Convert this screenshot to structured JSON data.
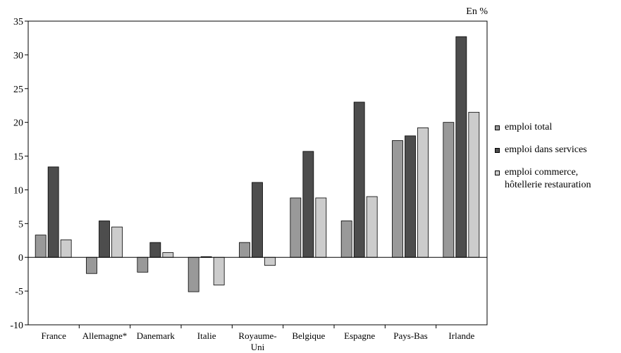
{
  "chart_data": {
    "type": "bar",
    "unit_label": "En %",
    "categories": [
      "France",
      "Allemagne*",
      "Danemark",
      "Italie",
      "Royaume-\nUni",
      "Belgique",
      "Espagne",
      "Pays-Bas",
      "Irlande"
    ],
    "series": [
      {
        "name": "emploi total",
        "color": "#999999",
        "values": [
          3.3,
          -2.4,
          -2.2,
          -5.1,
          2.2,
          8.8,
          5.4,
          17.3,
          20.0
        ]
      },
      {
        "name": "emploi dans services",
        "color": "#4d4d4d",
        "values": [
          13.4,
          5.4,
          2.2,
          0.1,
          11.1,
          15.7,
          23.0,
          18.0,
          32.7
        ]
      },
      {
        "name": "emploi commerce,\nhôtellerie restauration",
        "color": "#cccccc",
        "values": [
          2.6,
          4.5,
          0.7,
          -4.1,
          -1.2,
          8.8,
          9.0,
          19.2,
          21.5
        ]
      }
    ],
    "ylim": [
      -10,
      35
    ],
    "yticks": [
      -10,
      -5,
      0,
      5,
      10,
      15,
      20,
      25,
      30,
      35
    ],
    "ytick_labels": [
      "-10",
      "-5",
      "0",
      "5",
      "10",
      "15",
      "20",
      "25",
      "30",
      "35"
    ],
    "grid": false,
    "legend_position": "right"
  }
}
